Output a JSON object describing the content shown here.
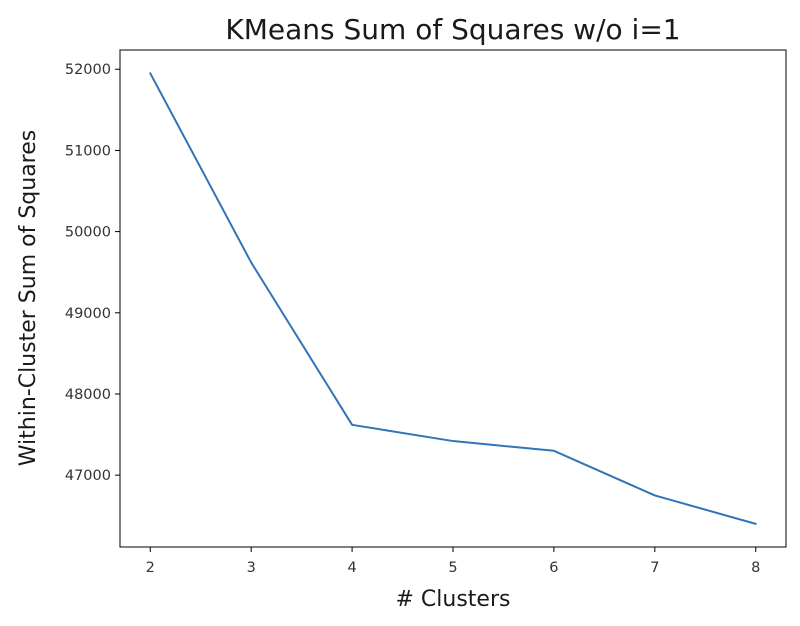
{
  "chart_data": {
    "type": "line",
    "title": "KMeans Sum of Squares w/o i=1",
    "xlabel": "# Clusters",
    "ylabel": "Within-Cluster Sum of Squares",
    "x": [
      2,
      3,
      4,
      5,
      6,
      7,
      8
    ],
    "series": [
      {
        "values": [
          51950,
          49620,
          47620,
          47420,
          47300,
          46750,
          46400
        ]
      }
    ],
    "xticks": [
      "2",
      "3",
      "4",
      "5",
      "6",
      "7",
      "8"
    ],
    "yticks": [
      "47000",
      "48000",
      "49000",
      "50000",
      "51000",
      "52000"
    ],
    "xlim": [
      1.7,
      8.3
    ],
    "ylim": [
      46115,
      52237
    ],
    "grid": false,
    "legend": "none",
    "line_color": "#3274b8"
  }
}
